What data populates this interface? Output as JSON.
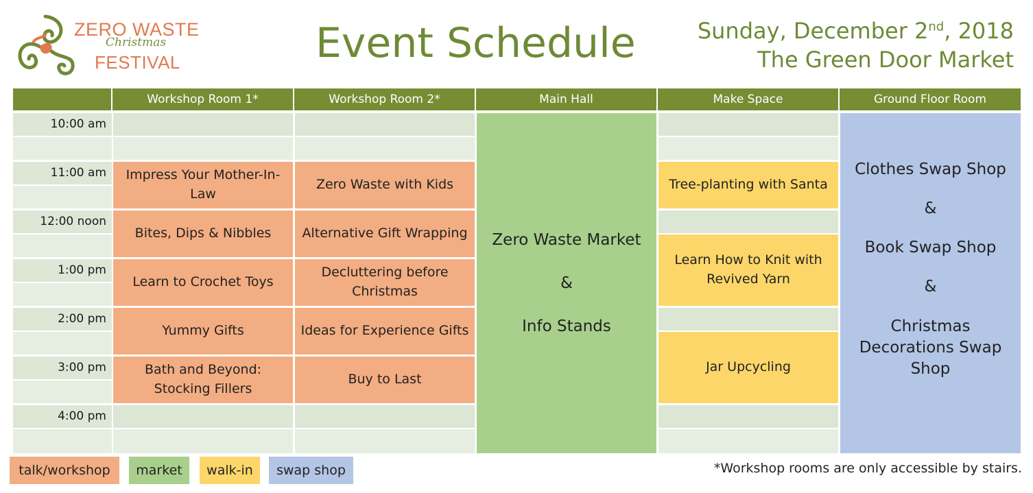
{
  "logo": {
    "line1": "ZERO WASTE",
    "line2": "Christmas",
    "line3": "FESTIVAL"
  },
  "title": "Event Schedule",
  "date": {
    "prefix": "Sunday, December 2",
    "suffix": "nd",
    "year": ", 2018"
  },
  "venue": "The Green Door Market",
  "columns": [
    "Workshop Room 1*",
    "Workshop Room 2*",
    "Main Hall",
    "Make Space",
    "Ground Floor Room"
  ],
  "times": [
    "10:00 am",
    "11:00 am",
    "12:00 noon",
    "1:00 pm",
    "2:00 pm",
    "3:00 pm",
    "4:00 pm"
  ],
  "room1": [
    "Impress Your Mother-In-Law",
    "Bites, Dips & Nibbles",
    "Learn to Crochet Toys",
    "Yummy Gifts",
    "Bath and Beyond: Stocking Fillers"
  ],
  "room2": [
    "Zero Waste with Kids",
    "Alternative Gift Wrapping",
    "Decluttering before Christmas",
    "Ideas for Experience Gifts",
    "Buy to Last"
  ],
  "main_hall": {
    "line1": "Zero Waste Market",
    "amp": "&",
    "line2": "Info Stands"
  },
  "make_space": [
    "Tree-planting with Santa",
    "Learn How to Knit with Revived Yarn",
    "Jar Upcycling"
  ],
  "ground_floor": {
    "line1": "Clothes Swap Shop",
    "amp1": "&",
    "line2": "Book Swap Shop",
    "amp2": "&",
    "line3": "Christmas Decorations Swap Shop"
  },
  "legend": [
    "talk/workshop",
    "market",
    "walk-in",
    "swap shop"
  ],
  "footnote": "*Workshop rooms are only accessible by stairs.",
  "colors": {
    "talk": "#f3ad82",
    "market": "#a8d08c",
    "walk_in": "#fdd66a",
    "swap": "#b4c6e6",
    "header": "#778d34",
    "title": "#6e8a35"
  }
}
